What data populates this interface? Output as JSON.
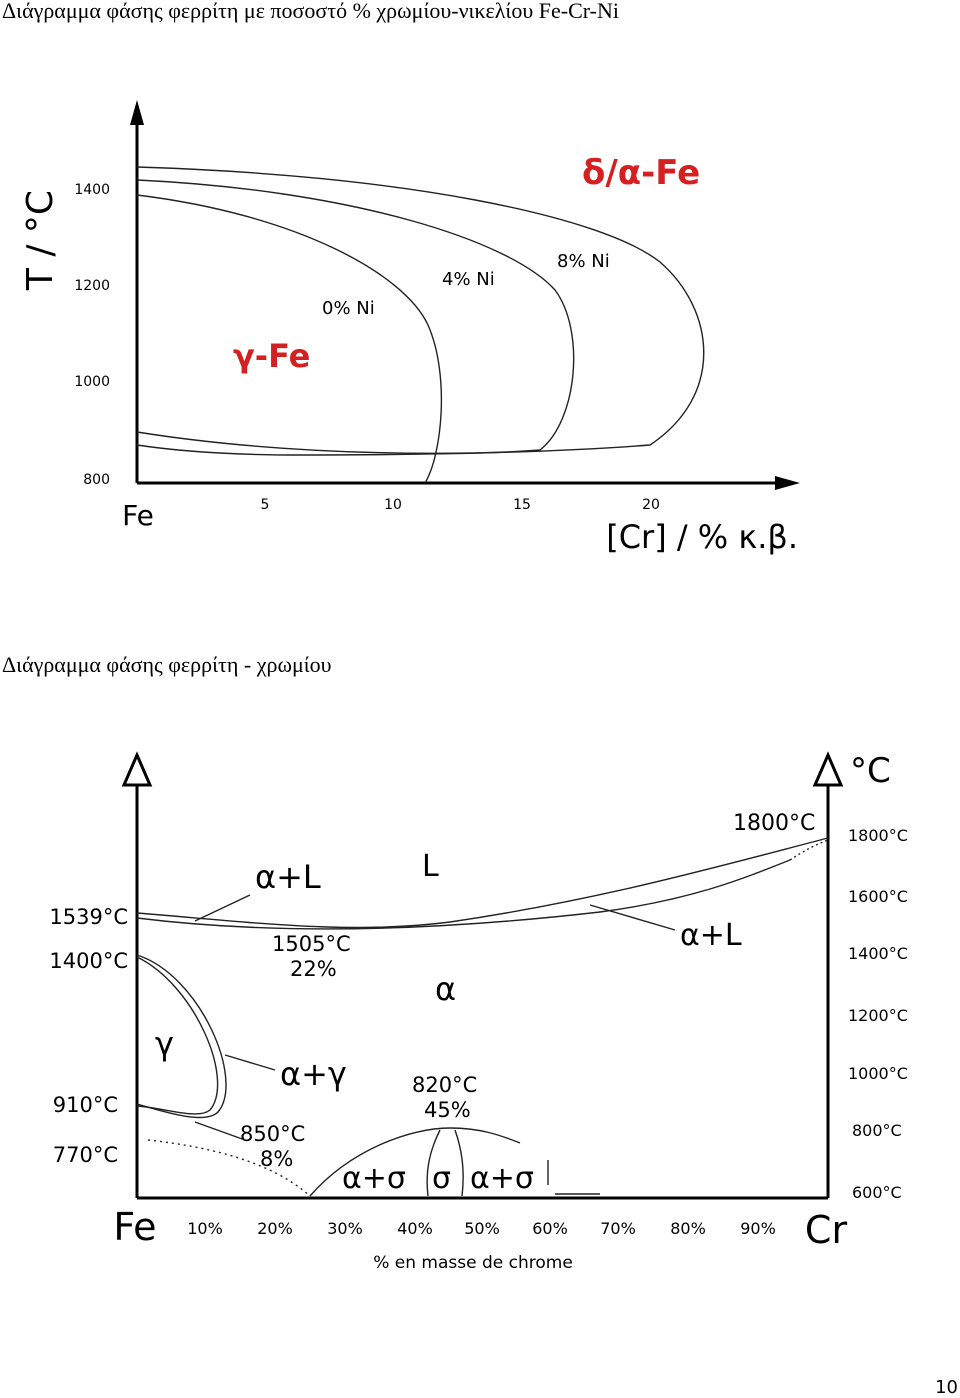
{
  "figure1": {
    "caption": "Διάγραμμα φάσης φερρίτη με ποσοστό % χρωμίου-νικελίου Fe-Cr-Ni",
    "y_axis_label": "T / °C",
    "y_ticks": [
      "1400",
      "1200",
      "1000",
      "800"
    ],
    "x_origin_label": "Fe",
    "x_ticks": [
      "5",
      "10",
      "15",
      "20"
    ],
    "x_axis_label": "[Cr] / % κ.β.",
    "regions": [
      "γ-Fe",
      "δ/α-Fe"
    ],
    "curve_labels": [
      "0% Ni",
      "4% Ni",
      "8% Ni"
    ]
  },
  "figure2": {
    "caption": "Διάγραμμα φάσης φερρίτη - χρωμίου",
    "left_labels": [
      "1539°C",
      "1400°C",
      "910°C",
      "770°C"
    ],
    "right_axis_label": "°C",
    "right_ticks": [
      "1800°C",
      "1600°C",
      "1400°C",
      "1200°C",
      "1000°C",
      "800°C",
      "600°C"
    ],
    "annotations": [
      "1800°C",
      "α+L",
      "L",
      "1505°C",
      "22%",
      "α",
      "γ",
      "α+γ",
      "850°C",
      "8%",
      "820°C",
      "45%",
      "α+σ",
      "σ",
      "α+σ",
      "α+L"
    ],
    "x_start": "Fe",
    "x_ticks": [
      "10%",
      "20%",
      "30%",
      "40%",
      "50%",
      "60%",
      "70%",
      "80%",
      "90%"
    ],
    "x_end": "Cr",
    "x_axis_label": "% en masse de chrome"
  },
  "page_number": "10"
}
